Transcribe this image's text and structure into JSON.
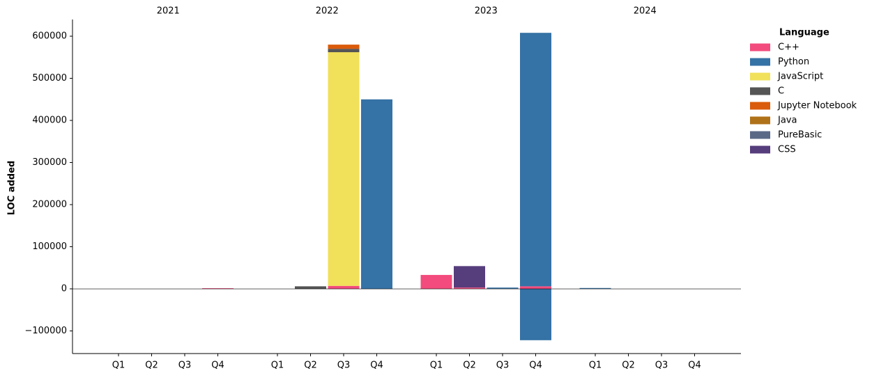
{
  "chart_data": {
    "type": "bar",
    "stacked": true,
    "y_label": "LOC added",
    "legend_title": "Language",
    "legend_position": "upper right outside",
    "grid": false,
    "years": [
      "2021",
      "2022",
      "2023",
      "2024"
    ],
    "categories": [
      "Q1",
      "Q2",
      "Q3",
      "Q4",
      "Q1",
      "Q2",
      "Q3",
      "Q4",
      "Q1",
      "Q2",
      "Q3",
      "Q4",
      "Q1",
      "Q2",
      "Q3",
      "Q4"
    ],
    "series": [
      {
        "name": "C++",
        "color": "#f34b7d",
        "values": [
          0,
          0,
          0,
          1500,
          0,
          0,
          7000,
          0,
          33000,
          3000,
          0,
          6000,
          0,
          0,
          0,
          0
        ]
      },
      {
        "name": "Python",
        "color": "#3572a5",
        "values": [
          0,
          0,
          0,
          0,
          0,
          0,
          0,
          450000,
          0,
          0,
          3000,
          602000,
          2000,
          0,
          0,
          0
        ]
      },
      {
        "name": "JavaScript",
        "color": "#f1e05a",
        "values": [
          0,
          0,
          0,
          0,
          0,
          0,
          555000,
          0,
          0,
          0,
          0,
          0,
          0,
          0,
          0,
          0
        ]
      },
      {
        "name": "C",
        "color": "#555555",
        "values": [
          0,
          0,
          0,
          0,
          0,
          6000,
          8000,
          0,
          0,
          0,
          0,
          0,
          0,
          0,
          0,
          0
        ]
      },
      {
        "name": "Jupyter Notebook",
        "color": "#da5b0b",
        "values": [
          0,
          0,
          0,
          0,
          0,
          0,
          10000,
          0,
          0,
          0,
          0,
          0,
          0,
          0,
          0,
          0
        ]
      },
      {
        "name": "Java",
        "color": "#b07219",
        "values": [
          0,
          0,
          0,
          0,
          0,
          0,
          0,
          0,
          0,
          0,
          0,
          0,
          0,
          0,
          0,
          0
        ]
      },
      {
        "name": "PureBasic",
        "color": "#5a6986",
        "values": [
          0,
          0,
          0,
          0,
          0,
          0,
          0,
          0,
          0,
          0,
          0,
          0,
          0,
          0,
          0,
          0
        ]
      },
      {
        "name": "CSS",
        "color": "#563d7c",
        "values": [
          0,
          0,
          0,
          0,
          0,
          0,
          0,
          0,
          0,
          51000,
          0,
          0,
          0,
          0,
          0,
          0
        ]
      },
      {
        "name": "Python",
        "color": "#3572a5",
        "values": [
          null,
          null,
          null,
          null,
          null,
          null,
          null,
          null,
          null,
          null,
          null,
          -122000,
          null,
          null,
          null,
          null
        ]
      }
    ],
    "ylim": [
      -153700,
      639700
    ],
    "yticks": [
      {
        "value": -100000,
        "label": "−100000"
      },
      0,
      100000,
      200000,
      300000,
      400000,
      500000,
      600000
    ]
  }
}
